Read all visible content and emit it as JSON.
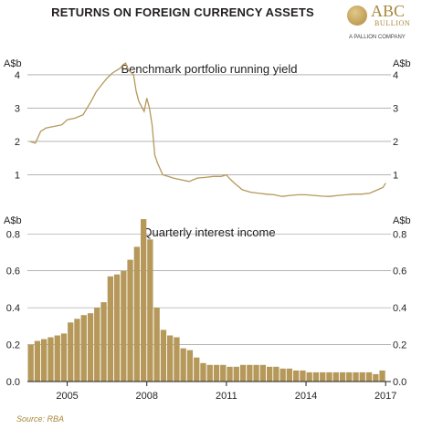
{
  "header": {
    "title": "RETURNS ON FOREIGN CURRENCY ASSETS",
    "logo_text": "ABC",
    "logo_subtext": "BULLION",
    "logo_tagline": "A PALLION COMPANY"
  },
  "source": "Source: RBA",
  "colors": {
    "series": "#b5985a",
    "bar_fill": "#b5985a",
    "gridline": "#888888",
    "axis": "#231f20",
    "source_text": "#a8873c"
  },
  "chart_data": [
    {
      "type": "line",
      "title": "Benchmark portfolio running yield",
      "unit_label_left": "A$b",
      "unit_label_right": "A$b",
      "xlim": [
        2003.5,
        2017.2
      ],
      "ylim": [
        0,
        4.6
      ],
      "yticks": [
        1,
        2,
        3,
        4
      ],
      "grid": true,
      "series": [
        {
          "x": [
            2003.6,
            2003.8,
            2004.0,
            2004.2,
            2004.5,
            2004.8,
            2005.0,
            2005.3,
            2005.6,
            2005.9,
            2006.1,
            2006.3,
            2006.5,
            2006.7,
            2006.9,
            2007.0,
            2007.1,
            2007.2,
            2007.3,
            2007.5,
            2007.6,
            2007.7,
            2007.9,
            2008.0,
            2008.1,
            2008.2,
            2008.3,
            2008.4,
            2008.6,
            2008.8,
            2009.0,
            2009.3,
            2009.6,
            2009.9,
            2010.2,
            2010.5,
            2010.8,
            2011.0,
            2011.1,
            2011.3,
            2011.6,
            2011.9,
            2012.2,
            2012.5,
            2012.8,
            2013.1,
            2013.4,
            2013.7,
            2014.0,
            2014.3,
            2014.6,
            2014.9,
            2015.2,
            2015.5,
            2015.8,
            2016.1,
            2016.4,
            2016.7,
            2016.9,
            2017.0
          ],
          "y": [
            2.0,
            1.95,
            2.3,
            2.4,
            2.45,
            2.5,
            2.65,
            2.7,
            2.8,
            3.2,
            3.5,
            3.7,
            3.9,
            4.05,
            4.15,
            4.2,
            4.3,
            4.35,
            4.15,
            4.0,
            3.5,
            3.2,
            2.9,
            3.3,
            3.0,
            2.5,
            1.6,
            1.35,
            1.0,
            0.95,
            0.9,
            0.85,
            0.8,
            0.9,
            0.92,
            0.95,
            0.95,
            1.0,
            0.9,
            0.75,
            0.55,
            0.48,
            0.45,
            0.42,
            0.4,
            0.35,
            0.38,
            0.4,
            0.4,
            0.38,
            0.36,
            0.35,
            0.38,
            0.4,
            0.42,
            0.42,
            0.45,
            0.55,
            0.62,
            0.75
          ]
        }
      ]
    },
    {
      "type": "bar",
      "title": "Quarterly interest income",
      "unit_label_left": "A$b",
      "unit_label_right": "A$b",
      "xlim": [
        2003.5,
        2017.2
      ],
      "ylim": [
        0,
        0.92
      ],
      "yticks": [
        0.0,
        0.2,
        0.4,
        0.6,
        0.8
      ],
      "xticks": [
        "2005",
        "2008",
        "2011",
        "2014",
        "2017"
      ],
      "xtick_values": [
        2005,
        2008,
        2011,
        2014,
        2017
      ],
      "grid": true,
      "x": [
        2003.625,
        2003.875,
        2004.125,
        2004.375,
        2004.625,
        2004.875,
        2005.125,
        2005.375,
        2005.625,
        2005.875,
        2006.125,
        2006.375,
        2006.625,
        2006.875,
        2007.125,
        2007.375,
        2007.625,
        2007.875,
        2008.125,
        2008.375,
        2008.625,
        2008.875,
        2009.125,
        2009.375,
        2009.625,
        2009.875,
        2010.125,
        2010.375,
        2010.625,
        2010.875,
        2011.125,
        2011.375,
        2011.625,
        2011.875,
        2012.125,
        2012.375,
        2012.625,
        2012.875,
        2013.125,
        2013.375,
        2013.625,
        2013.875,
        2014.125,
        2014.375,
        2014.625,
        2014.875,
        2015.125,
        2015.375,
        2015.625,
        2015.875,
        2016.125,
        2016.375,
        2016.625,
        2016.875
      ],
      "values": [
        0.2,
        0.22,
        0.23,
        0.24,
        0.25,
        0.26,
        0.32,
        0.34,
        0.36,
        0.37,
        0.4,
        0.43,
        0.57,
        0.58,
        0.6,
        0.66,
        0.73,
        0.88,
        0.77,
        0.4,
        0.28,
        0.25,
        0.24,
        0.18,
        0.17,
        0.13,
        0.1,
        0.09,
        0.09,
        0.09,
        0.08,
        0.08,
        0.09,
        0.09,
        0.09,
        0.09,
        0.08,
        0.08,
        0.07,
        0.07,
        0.06,
        0.06,
        0.05,
        0.05,
        0.05,
        0.05,
        0.05,
        0.05,
        0.05,
        0.05,
        0.05,
        0.05,
        0.04,
        0.06
      ]
    }
  ]
}
